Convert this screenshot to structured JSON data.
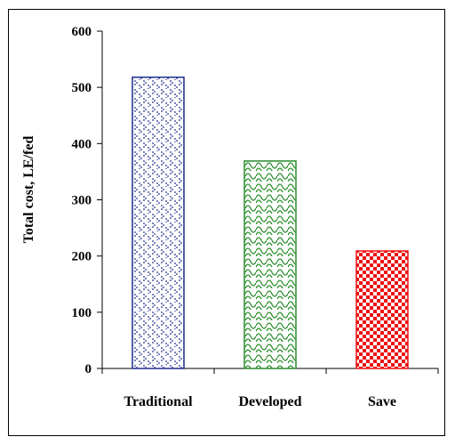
{
  "chart_data": {
    "type": "bar",
    "categories": [
      "Traditional",
      "Developed",
      "Save"
    ],
    "values": [
      518,
      369,
      209
    ],
    "title": "",
    "xlabel": "",
    "ylabel": "Total cost, LE/fed",
    "ylim": [
      0,
      600
    ],
    "yticks": [
      "0",
      "100",
      "200",
      "300",
      "400",
      "500",
      "600"
    ],
    "grid": false,
    "legend": "none",
    "bar_styles": [
      {
        "pattern": "dotted-diamond",
        "color": "#1f2c8c"
      },
      {
        "pattern": "scales",
        "color": "#2a8c2a"
      },
      {
        "pattern": "checkerboard",
        "color": "#ee1111"
      }
    ]
  }
}
